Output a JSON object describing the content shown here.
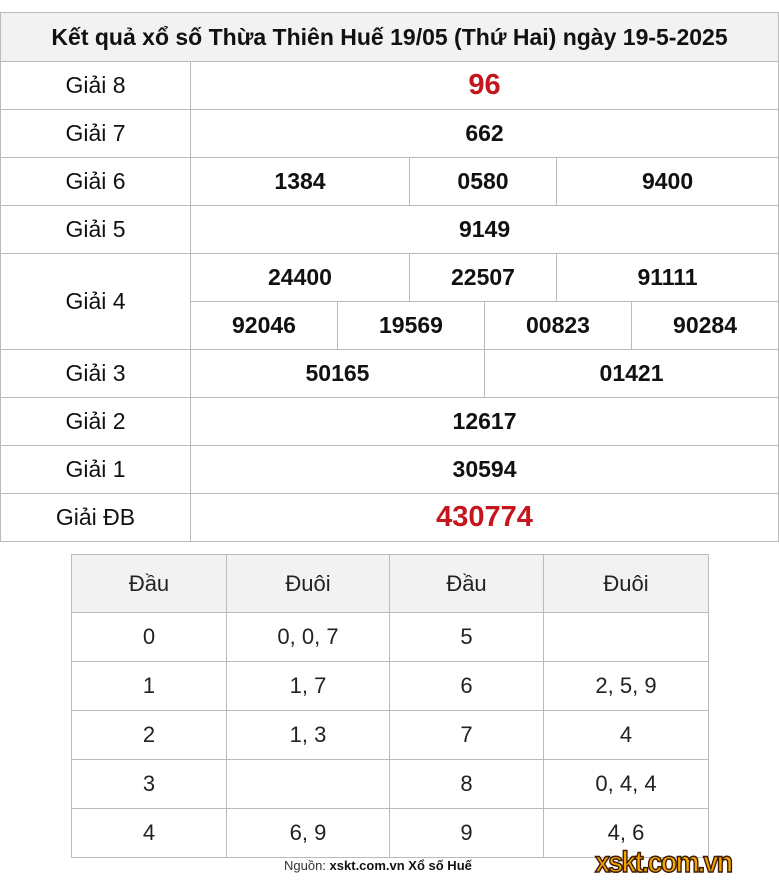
{
  "title": "Kết quả xổ số Thừa Thiên Huế 19/05 (Thứ Hai) ngày 19-5-2025",
  "prizes": {
    "g8": {
      "label": "Giải 8",
      "values": [
        "96"
      ]
    },
    "g7": {
      "label": "Giải 7",
      "values": [
        "662"
      ]
    },
    "g6": {
      "label": "Giải 6",
      "values": [
        "1384",
        "0580",
        "9400"
      ]
    },
    "g5": {
      "label": "Giải 5",
      "values": [
        "9149"
      ]
    },
    "g4": {
      "label": "Giải 4",
      "values": [
        "24400",
        "22507",
        "91111",
        "92046",
        "19569",
        "00823",
        "90284"
      ]
    },
    "g3": {
      "label": "Giải 3",
      "values": [
        "50165",
        "01421"
      ]
    },
    "g2": {
      "label": "Giải 2",
      "values": [
        "12617"
      ]
    },
    "g1": {
      "label": "Giải 1",
      "values": [
        "30594"
      ]
    },
    "db": {
      "label": "Giải ĐB",
      "values": [
        "430774"
      ]
    }
  },
  "loto": {
    "headers": [
      "Đầu",
      "Đuôi",
      "Đầu",
      "Đuôi"
    ],
    "rows": [
      [
        "0",
        "0, 0, 7",
        "5",
        ""
      ],
      [
        "1",
        "1, 7",
        "6",
        "2, 5, 9"
      ],
      [
        "2",
        "1, 3",
        "7",
        "4"
      ],
      [
        "3",
        "",
        "8",
        "0, 4, 4"
      ],
      [
        "4",
        "6, 9",
        "9",
        "4, 6"
      ]
    ]
  },
  "source": {
    "prefix": "Nguồn:",
    "text": "xskt.com.vn Xổ số Huế"
  },
  "logo": "xskt.com.vn",
  "colors": {
    "special": "#c4161c",
    "header_bg": "#f2f2f2",
    "logo": "#f5a300"
  }
}
